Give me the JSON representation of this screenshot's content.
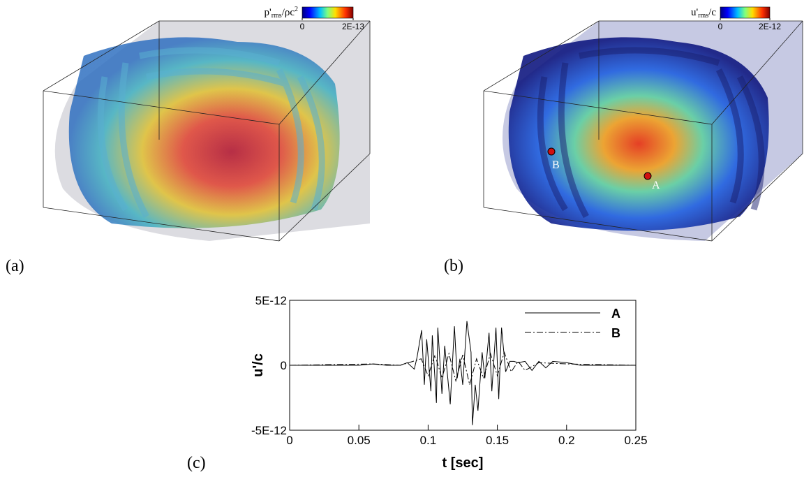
{
  "panels": {
    "a": {
      "label": "(a)",
      "colorbar": {
        "title": {
          "base": "p'",
          "sub": "rms",
          "tail": "/ρc",
          "sup": "2"
        },
        "ticks": [
          0,
          {
            "value": 2e-13,
            "label": "2E-13"
          }
        ]
      }
    },
    "b": {
      "label": "(b)",
      "colorbar": {
        "title": {
          "base": "u'",
          "sub": "rms",
          "tail": "/c"
        },
        "ticks": [
          0,
          {
            "value": 2e-12,
            "label": "2E-12"
          }
        ]
      },
      "probes": [
        {
          "label": "A"
        },
        {
          "label": "B"
        }
      ]
    }
  },
  "chart_data": {
    "type": "line",
    "label": "(c)",
    "xlabel": "t [sec]",
    "ylabel": "u'/c",
    "xlim": [
      0,
      0.25
    ],
    "ylim": [
      -5e-12,
      5e-12
    ],
    "xticks": [
      0,
      0.05,
      0.1,
      0.15,
      0.2,
      0.25
    ],
    "yticks": [
      {
        "value": 5e-12,
        "label": "5E-12"
      },
      0,
      {
        "value": -5e-12,
        "label": "-5E-12"
      }
    ],
    "series": [
      {
        "name": "A",
        "color": "#000000",
        "dash": "solid",
        "x": [
          0,
          0.05,
          0.06,
          0.07,
          0.08,
          0.085,
          0.09,
          0.092,
          0.0953,
          0.0973,
          0.099,
          0.102,
          0.103,
          0.106,
          0.107,
          0.11,
          0.112,
          0.116,
          0.119,
          0.121,
          0.123,
          0.125,
          0.128,
          0.131,
          0.132,
          0.134,
          0.136,
          0.139,
          0.141,
          0.144,
          0.146,
          0.149,
          0.151,
          0.153,
          0.156,
          0.159,
          0.162,
          0.165,
          0.17,
          0.175,
          0.18,
          0.185,
          0.19,
          0.2,
          0.21,
          0.25
        ],
        "values": [
          0,
          0,
          1e-13,
          0,
          0,
          2e-13,
          -3e-13,
          6e-13,
          2.7e-12,
          -1.5e-12,
          2e-12,
          -2e-12,
          2.3e-12,
          -2.9e-12,
          2.9e-12,
          -2.2e-12,
          1.5e-12,
          -3e-12,
          3e-12,
          -1e-12,
          5e-13,
          -1.5e-12,
          3.4e-12,
          1e-12,
          -4.6e-12,
          -1.5e-12,
          -3.5e-12,
          1e-12,
          -1e-12,
          2.5e-12,
          -2e-12,
          2.9e-12,
          -2.6e-12,
          2.9e-12,
          -5e-13,
          3e-13,
          3e-13,
          2e-13,
          3e-13,
          -4e-13,
          3e-13,
          -2e-13,
          3e-13,
          2e-13,
          0,
          0
        ]
      },
      {
        "name": "B",
        "color": "#000000",
        "dash": "dash-dot",
        "x": [
          0,
          0.06,
          0.08,
          0.095,
          0.1,
          0.105,
          0.11,
          0.115,
          0.12,
          0.125,
          0.13,
          0.135,
          0.14,
          0.145,
          0.15,
          0.155,
          0.16,
          0.165,
          0.17,
          0.18,
          0.2,
          0.25
        ],
        "values": [
          0,
          1e-13,
          0,
          5e-13,
          -8e-13,
          8e-13,
          -1e-12,
          9e-13,
          -1.2e-12,
          8e-13,
          -1.5e-12,
          5e-13,
          -1e-12,
          9e-13,
          -8e-13,
          1e-12,
          -5e-13,
          3e-13,
          -4e-13,
          2e-13,
          1e-13,
          0
        ]
      }
    ]
  }
}
